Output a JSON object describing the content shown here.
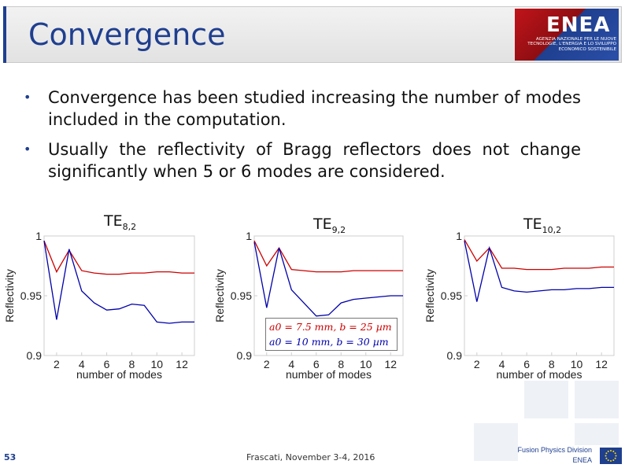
{
  "slide": {
    "title": "Convergence",
    "logo": {
      "name": "ENEA",
      "subtitle": "AGENZIA NAZIONALE PER LE NUOVE TECNOLOGIE, L'ENERGIA E LO SVILUPPO ECONOMICO SOSTENIBILE"
    },
    "bullets": [
      "Convergence has been studied increasing the number of modes included in the computation.",
      "Usually the reflectivity of Bragg reflectors does not change significantly when 5 or 6 modes are considered."
    ],
    "footer": {
      "page_number": "53",
      "event": "Frascati, November 3-4, 2016",
      "division": "Fusion Physics Division",
      "organization": "ENEA"
    },
    "legend": {
      "red": "a0 = 7.5 mm, b = 25 µm",
      "blue": "a0 = 10 mm, b = 30 µm"
    }
  },
  "colors": {
    "title": "#1f3f8f",
    "red_series": "#cc0000",
    "blue_series": "#0000aa"
  },
  "chart_data": [
    {
      "type": "line",
      "title_main": "TE",
      "title_sub": "8,2",
      "xlabel": "number of modes",
      "ylabel": "Reflectivity",
      "xlim": [
        1,
        13
      ],
      "ylim": [
        0.9,
        1.0
      ],
      "xticks": [
        2,
        4,
        6,
        8,
        10,
        12
      ],
      "xtick_labels": [
        "2",
        "4",
        "6",
        "8",
        "10",
        "12"
      ],
      "yticks": [
        0.9,
        0.95,
        1.0
      ],
      "ytick_labels": [
        "0.9",
        "0.95",
        "1"
      ],
      "x": [
        1,
        2,
        3,
        4,
        5,
        6,
        7,
        8,
        9,
        10,
        11,
        12,
        13
      ],
      "series": [
        {
          "name": "a0 = 7.5 mm, b = 25 µm",
          "color": "#cc0000",
          "values": [
            0.996,
            0.97,
            0.988,
            0.971,
            0.969,
            0.968,
            0.968,
            0.969,
            0.969,
            0.97,
            0.97,
            0.969,
            0.969
          ]
        },
        {
          "name": "a0 = 10 mm, b = 30 µm",
          "color": "#0000aa",
          "values": [
            0.996,
            0.93,
            0.989,
            0.954,
            0.944,
            0.938,
            0.939,
            0.943,
            0.942,
            0.928,
            0.927,
            0.928,
            0.928
          ]
        }
      ]
    },
    {
      "type": "line",
      "title_main": "TE",
      "title_sub": "9,2",
      "xlabel": "number of modes",
      "ylabel": "Reflectivity",
      "xlim": [
        1,
        13
      ],
      "ylim": [
        0.9,
        1.0
      ],
      "xticks": [
        2,
        4,
        6,
        8,
        10,
        12
      ],
      "xtick_labels": [
        "2",
        "4",
        "6",
        "8",
        "10",
        "12"
      ],
      "yticks": [
        0.9,
        0.95,
        1.0
      ],
      "ytick_labels": [
        "0.9",
        "0.95",
        "1"
      ],
      "x": [
        1,
        2,
        3,
        4,
        5,
        6,
        7,
        8,
        9,
        10,
        11,
        12,
        13
      ],
      "series": [
        {
          "name": "a0 = 7.5 mm, b = 25 µm",
          "color": "#cc0000",
          "values": [
            0.996,
            0.975,
            0.99,
            0.972,
            0.971,
            0.97,
            0.97,
            0.97,
            0.971,
            0.971,
            0.971,
            0.971,
            0.971
          ]
        },
        {
          "name": "a0 = 10 mm, b = 30 µm",
          "color": "#0000aa",
          "values": [
            0.995,
            0.94,
            0.99,
            0.955,
            0.944,
            0.933,
            0.934,
            0.944,
            0.947,
            0.948,
            0.949,
            0.95,
            0.95
          ]
        }
      ]
    },
    {
      "type": "line",
      "title_main": "TE",
      "title_sub": "10,2",
      "xlabel": "number of modes",
      "ylabel": "Reflectivity",
      "xlim": [
        1,
        13
      ],
      "ylim": [
        0.9,
        1.0
      ],
      "xticks": [
        2,
        4,
        6,
        8,
        10,
        12
      ],
      "xtick_labels": [
        "2",
        "4",
        "6",
        "8",
        "10",
        "12"
      ],
      "yticks": [
        0.9,
        0.95,
        1.0
      ],
      "ytick_labels": [
        "0.9",
        "0.95",
        "1"
      ],
      "x": [
        1,
        2,
        3,
        4,
        5,
        6,
        7,
        8,
        9,
        10,
        11,
        12,
        13
      ],
      "series": [
        {
          "name": "a0 = 7.5 mm, b = 25 µm",
          "color": "#cc0000",
          "values": [
            0.997,
            0.979,
            0.99,
            0.973,
            0.973,
            0.972,
            0.972,
            0.972,
            0.973,
            0.973,
            0.973,
            0.974,
            0.974
          ]
        },
        {
          "name": "a0 = 10 mm, b = 30 µm",
          "color": "#0000aa",
          "values": [
            0.996,
            0.945,
            0.99,
            0.957,
            0.954,
            0.953,
            0.954,
            0.955,
            0.955,
            0.956,
            0.956,
            0.957,
            0.957
          ]
        }
      ]
    }
  ]
}
